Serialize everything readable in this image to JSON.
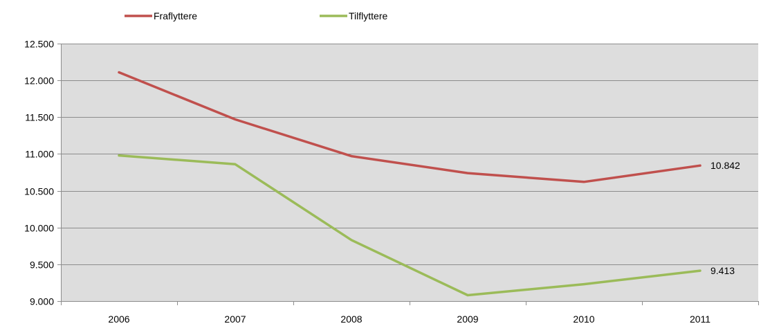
{
  "chart_data": {
    "type": "line",
    "categories": [
      "2006",
      "2007",
      "2008",
      "2009",
      "2010",
      "2011"
    ],
    "series": [
      {
        "name": "Fraflyttere",
        "color": "#c0504d",
        "values": [
          12110,
          11470,
          10970,
          10740,
          10620,
          10842
        ],
        "end_label": "10.842"
      },
      {
        "name": "Tilflyttere",
        "color": "#9bbb59",
        "values": [
          10980,
          10860,
          9830,
          9080,
          9230,
          9413
        ],
        "end_label": "9.413"
      }
    ],
    "yticks": [
      9000,
      9500,
      10000,
      10500,
      11000,
      11500,
      12000,
      12500
    ],
    "ytick_labels": [
      "9.000",
      "9.500",
      "10.000",
      "10.500",
      "11.000",
      "11.500",
      "12.000",
      "12.500"
    ],
    "ylim": [
      9000,
      12500
    ],
    "title": "",
    "xlabel": "",
    "ylabel": "",
    "grid": true,
    "plot_background": "#dddddd",
    "gridline_color": "#8c8c8c",
    "legend_position": "top-left"
  }
}
